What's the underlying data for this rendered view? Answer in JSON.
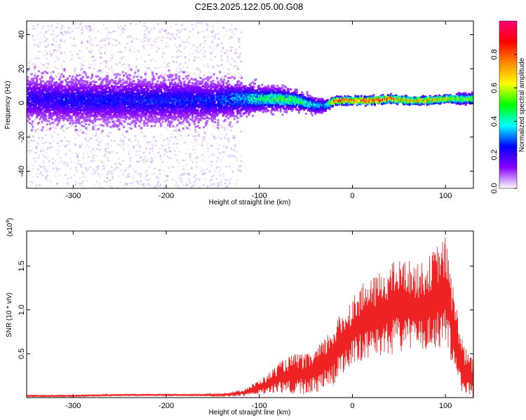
{
  "title": "C2E3.2025.122.05.00.G08",
  "chart_data": [
    {
      "type": "heatmap",
      "title": "C2E3.2025.122.05.00.G08",
      "xlabel": "Height of straight line (km)",
      "ylabel": "Frequency (Hz)",
      "xlim": [
        -350,
        130
      ],
      "ylim": [
        -50,
        48
      ],
      "x_ticks": [
        -300,
        -200,
        -100,
        0,
        100
      ],
      "x_tick_labels": [
        "-300",
        "-200",
        "-100",
        "0",
        "100"
      ],
      "y_ticks": [
        -40,
        -20,
        0,
        20,
        40
      ],
      "y_tick_labels": [
        "-40",
        "-20",
        "0",
        "20",
        "40"
      ],
      "colorbar": {
        "label": "Normalized spectral amplitude",
        "range": [
          0,
          1
        ],
        "ticks": [
          0.0,
          0.2,
          0.4,
          0.6,
          0.8
        ],
        "tick_labels": [
          "0.0",
          "0.2",
          "0.4",
          "0.6",
          "0.8"
        ],
        "colors": [
          "#ffffff",
          "#8800ff",
          "#0000ff",
          "#00ffff",
          "#00ff00",
          "#ffff00",
          "#ff8800",
          "#ff0000",
          "#ff0077"
        ]
      },
      "ridge": {
        "x": [
          -350,
          -300,
          -250,
          -200,
          -150,
          -120,
          -100,
          -80,
          -60,
          -40,
          -30,
          -20,
          0,
          20,
          40,
          60,
          80,
          100,
          130
        ],
        "y": [
          3,
          2,
          2,
          2,
          2,
          3,
          3,
          3,
          2,
          -1,
          -1,
          2,
          2,
          2,
          3,
          2,
          2,
          3,
          3
        ],
        "amplitude": [
          0.15,
          0.18,
          0.18,
          0.2,
          0.2,
          0.3,
          0.4,
          0.45,
          0.45,
          0.3,
          0.3,
          0.75,
          0.85,
          0.85,
          0.8,
          0.7,
          0.7,
          0.6,
          0.5
        ],
        "spread_hz": [
          12,
          12,
          12,
          12,
          11,
          9,
          7,
          6,
          5,
          4,
          3,
          2,
          2,
          2,
          2,
          2,
          2,
          2,
          3
        ]
      },
      "noise_scatter": {
        "x_range": [
          -350,
          -120
        ],
        "y_range": [
          -50,
          48
        ],
        "amplitude": 0.03
      }
    },
    {
      "type": "line",
      "xlabel": "Height of straight line (km)",
      "ylabel": "SNR (10 * v/v)",
      "y_multiplier": "(x10",
      "y_multiplier_exp": "4",
      "y_multiplier_close": ")",
      "xlim": [
        -350,
        130
      ],
      "ylim": [
        0,
        1.9
      ],
      "x_ticks": [
        -300,
        -200,
        -100,
        0,
        100
      ],
      "x_tick_labels": [
        "-300",
        "-200",
        "-100",
        "0",
        "100"
      ],
      "y_ticks": [
        0.5,
        1.0,
        1.5
      ],
      "y_tick_labels": [
        "0.5",
        "1.0",
        "1.5"
      ],
      "line_color": "#ee2222",
      "series": [
        {
          "x": [
            -350,
            -300,
            -250,
            -200,
            -170,
            -140,
            -120,
            -110,
            -100,
            -90,
            -80,
            -70,
            -60,
            -50,
            -40,
            -30,
            -20,
            -10,
            0,
            10,
            20,
            30,
            40,
            50,
            60,
            70,
            80,
            90,
            100,
            110,
            120,
            130
          ],
          "y": [
            0.02,
            0.02,
            0.03,
            0.03,
            0.03,
            0.03,
            0.05,
            0.08,
            0.12,
            0.16,
            0.22,
            0.25,
            0.28,
            0.26,
            0.3,
            0.38,
            0.5,
            0.62,
            0.75,
            0.85,
            0.88,
            0.95,
            1.0,
            1.05,
            1.05,
            1.0,
            1.05,
            1.15,
            1.2,
            0.7,
            0.3,
            0.2
          ],
          "noise_spread": [
            0.01,
            0.01,
            0.01,
            0.01,
            0.01,
            0.02,
            0.03,
            0.05,
            0.07,
            0.1,
            0.15,
            0.18,
            0.2,
            0.2,
            0.22,
            0.25,
            0.3,
            0.32,
            0.35,
            0.38,
            0.4,
            0.42,
            0.45,
            0.45,
            0.45,
            0.45,
            0.45,
            0.5,
            0.55,
            0.4,
            0.25,
            0.2
          ]
        }
      ]
    }
  ]
}
